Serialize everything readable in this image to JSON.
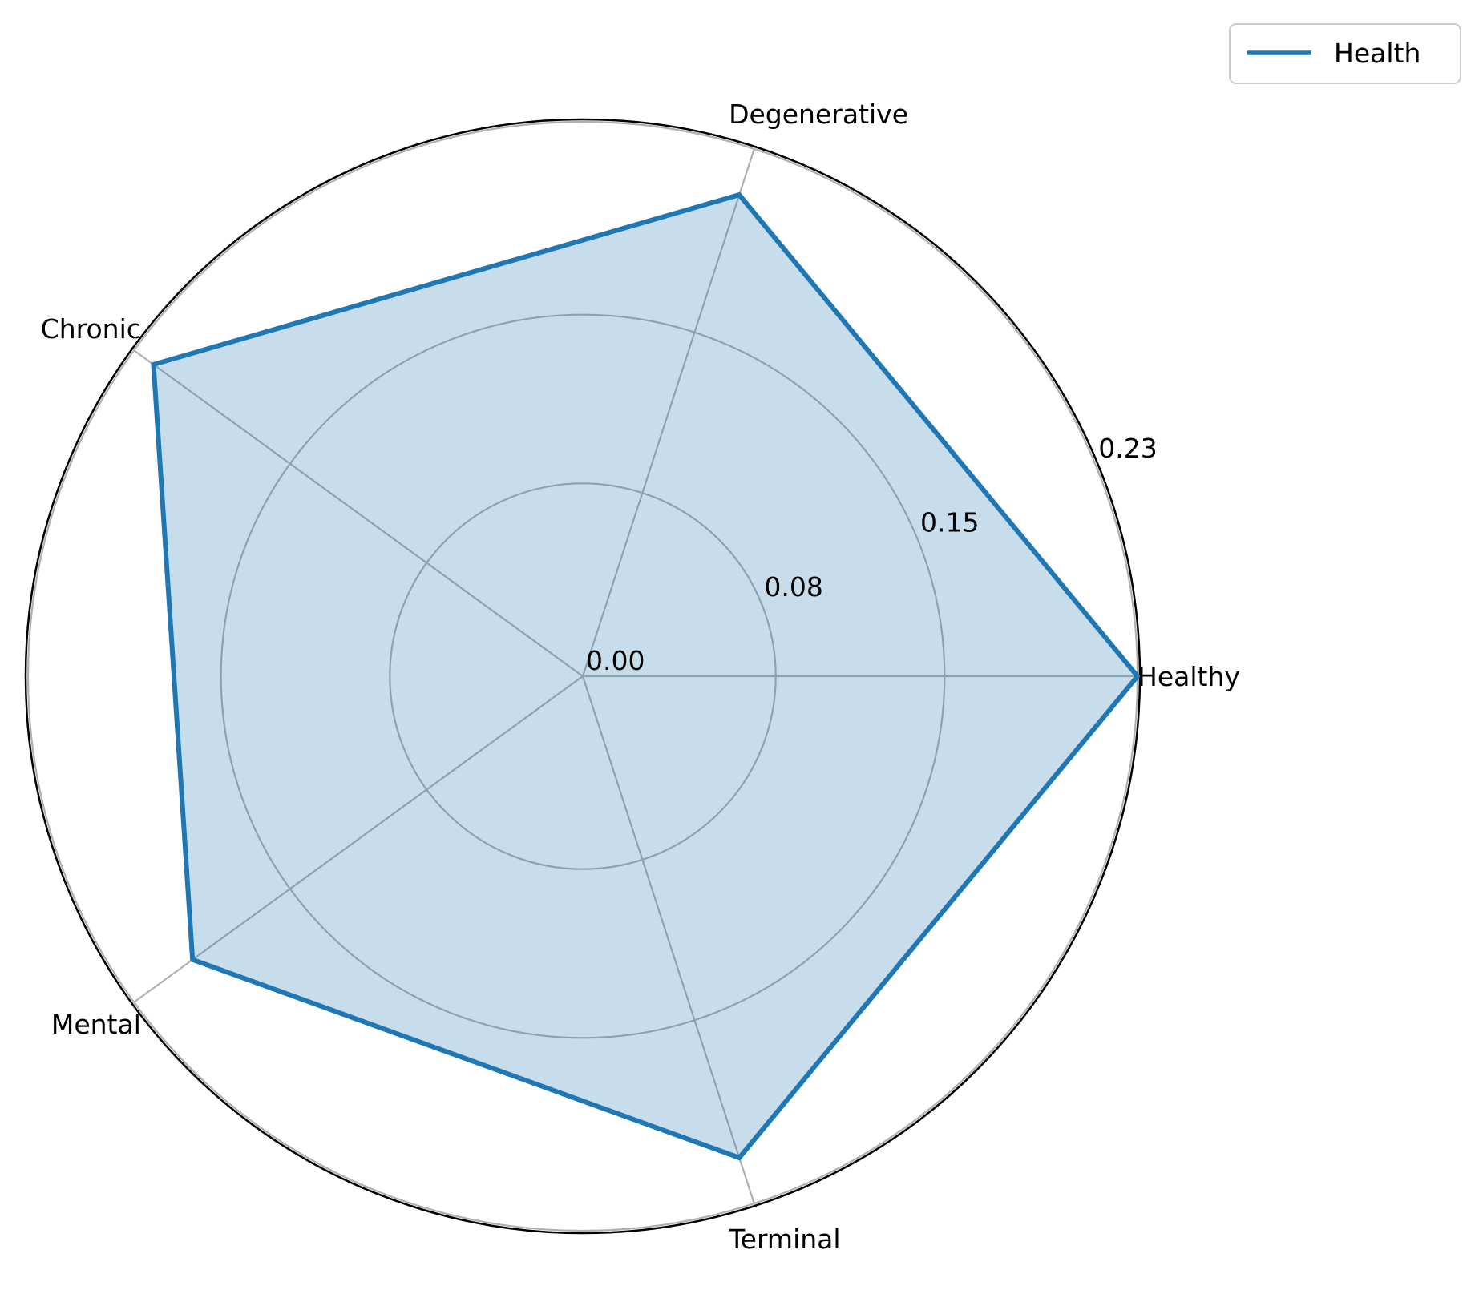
{
  "chart_data": {
    "type": "radar",
    "categories": [
      "Healthy",
      "Degenerative",
      "Chronic",
      "Mental",
      "Terminal"
    ],
    "series": [
      {
        "name": "Health",
        "values": [
          0.23,
          0.21,
          0.22,
          0.2,
          0.21
        ]
      }
    ],
    "r_ticks": [
      0.0,
      0.08,
      0.15,
      0.23
    ],
    "r_tick_labels": [
      "0.00",
      "0.08",
      "0.15",
      "0.23"
    ],
    "rlim": [
      0,
      0.23
    ],
    "grid": true,
    "legend": "top-right",
    "colors": {
      "line": "#1f77b4",
      "fill": "#1f77b4",
      "grid": "#b0b0b0",
      "frame": "#000000"
    }
  }
}
